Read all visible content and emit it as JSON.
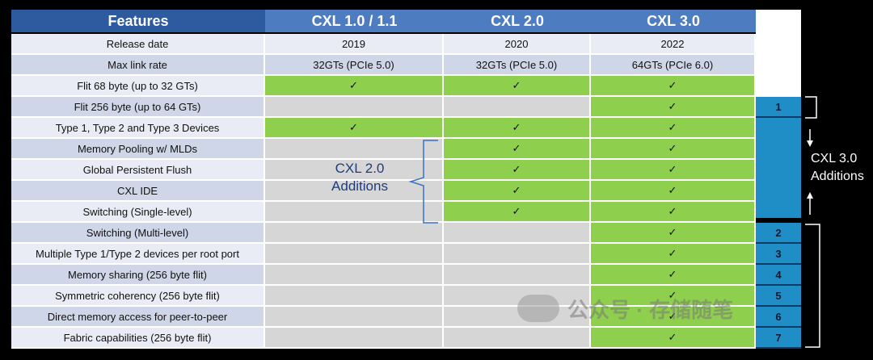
{
  "header": {
    "features": "Features",
    "cxl1": "CXL 1.0 / 1.1",
    "cxl2": "CXL 2.0",
    "cxl3": "CXL 3.0"
  },
  "check": "✓",
  "rows": [
    {
      "feature": "Release date",
      "c1": "2019",
      "c2": "2020",
      "c3": "2022"
    },
    {
      "feature": "Max link rate",
      "c1": "32GTs (PCIe 5.0)",
      "c2": "32GTs (PCIe 5.0)",
      "c3": "64GTs (PCIe 6.0)"
    },
    {
      "feature": "Flit 68 byte (up to 32 GTs)"
    },
    {
      "feature": "Flit 256 byte (up to 64 GTs)"
    },
    {
      "feature": "Type 1, Type 2 and Type 3 Devices"
    },
    {
      "feature": "Memory Pooling w/ MLDs"
    },
    {
      "feature": "Global Persistent Flush"
    },
    {
      "feature": "CXL IDE"
    },
    {
      "feature": "Switching (Single-level)"
    },
    {
      "feature": "Switching (Multi-level)"
    },
    {
      "feature": "Multiple Type 1/Type 2 devices per root port"
    },
    {
      "feature": "Memory sharing (256 byte flit)"
    },
    {
      "feature": "Symmetric coherency (256 byte flit)"
    },
    {
      "feature": "Direct memory access for peer-to-peer"
    },
    {
      "feature": "Fabric capabilities (256 byte flit)"
    }
  ],
  "cxl2_additions": {
    "line1": "CXL 2.0",
    "line2": "Additions"
  },
  "cxl3_additions": {
    "line1": "CXL 3.0",
    "line2": "Additions"
  },
  "numbers": [
    "1",
    "2",
    "3",
    "4",
    "5",
    "6",
    "7"
  ],
  "watermark": "公众号 · 存储随笔",
  "colors": {
    "header_features": "#2e5aa0",
    "header_versions": "#4e7cc0",
    "supported_green": "#8ed04e",
    "unsupported_grey": "#d6d6d6",
    "additions_blue": "#1f8ec6"
  }
}
